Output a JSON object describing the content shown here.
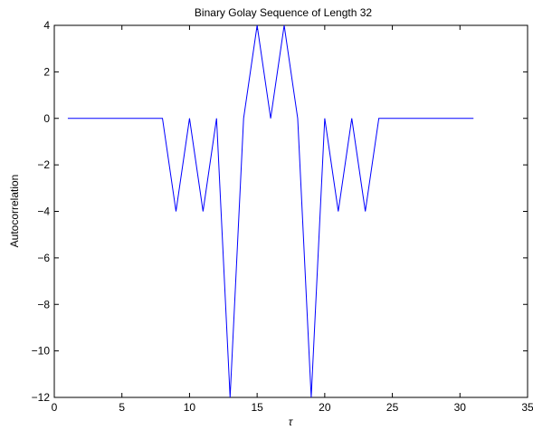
{
  "chart_data": {
    "type": "line",
    "title": "Binary Golay Sequence of Length 32",
    "xlabel": "τ",
    "ylabel": "Autocorrelation",
    "xlim": [
      0,
      35
    ],
    "ylim": [
      -12,
      4
    ],
    "xticks": [
      0,
      5,
      10,
      15,
      20,
      25,
      30,
      35
    ],
    "yticks": [
      4,
      2,
      0,
      -2,
      -4,
      -6,
      -8,
      -10,
      -12
    ],
    "ytick_labels": [
      "4",
      "2",
      "0",
      "−2",
      "−4",
      "−6",
      "−8",
      "−10",
      "−12"
    ],
    "grid": false,
    "series": [
      {
        "color": "#0000ff",
        "x": [
          1,
          2,
          3,
          4,
          5,
          6,
          7,
          8,
          9,
          10,
          11,
          12,
          13,
          14,
          15,
          16,
          17,
          18,
          19,
          20,
          21,
          22,
          23,
          24,
          25,
          26,
          27,
          28,
          29,
          30,
          31
        ],
        "y": [
          0,
          0,
          0,
          0,
          0,
          0,
          0,
          0,
          -4,
          0,
          -4,
          0,
          -12,
          0,
          4,
          0,
          4,
          0,
          -12,
          0,
          -4,
          0,
          -4,
          0,
          0,
          0,
          0,
          0,
          0,
          0,
          0
        ]
      }
    ]
  }
}
